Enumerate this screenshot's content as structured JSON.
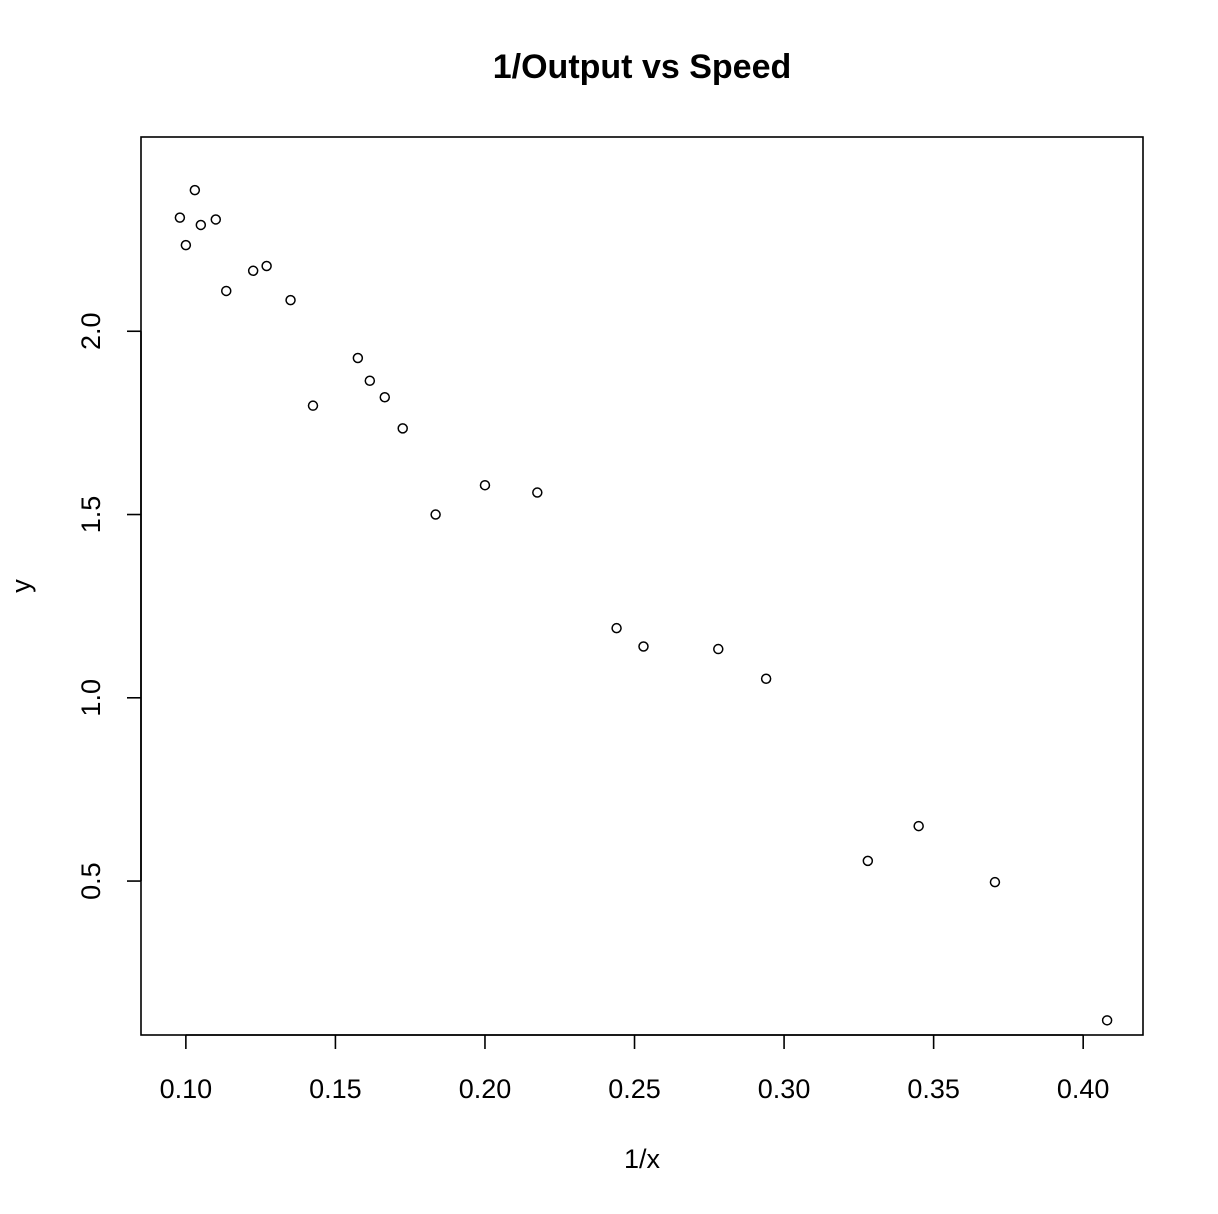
{
  "chart_data": {
    "type": "scatter",
    "title": "1/Output vs Speed",
    "xlabel": "1/x",
    "ylabel": "y",
    "xlim": [
      0.085,
      0.42
    ],
    "ylim": [
      0.08,
      2.53
    ],
    "xticks": [
      0.1,
      0.15,
      0.2,
      0.25,
      0.3,
      0.35,
      0.4
    ],
    "xtick_labels": [
      "0.10",
      "0.15",
      "0.20",
      "0.25",
      "0.30",
      "0.35",
      "0.40"
    ],
    "yticks": [
      0.5,
      1.0,
      1.5,
      2.0
    ],
    "ytick_labels": [
      "0.5",
      "1.0",
      "1.5",
      "2.0"
    ],
    "grid": false,
    "legend": false,
    "marker": "open-circle",
    "point_color": "#000000",
    "points": [
      {
        "x": 0.098,
        "y": 2.31
      },
      {
        "x": 0.1,
        "y": 2.235
      },
      {
        "x": 0.103,
        "y": 2.385
      },
      {
        "x": 0.105,
        "y": 2.29
      },
      {
        "x": 0.11,
        "y": 2.305
      },
      {
        "x": 0.1135,
        "y": 2.11
      },
      {
        "x": 0.1225,
        "y": 2.165
      },
      {
        "x": 0.127,
        "y": 2.178
      },
      {
        "x": 0.135,
        "y": 2.085
      },
      {
        "x": 0.1425,
        "y": 1.797
      },
      {
        "x": 0.1575,
        "y": 1.927
      },
      {
        "x": 0.1615,
        "y": 1.865
      },
      {
        "x": 0.1665,
        "y": 1.82
      },
      {
        "x": 0.1725,
        "y": 1.735
      },
      {
        "x": 0.1835,
        "y": 1.5
      },
      {
        "x": 0.2,
        "y": 1.58
      },
      {
        "x": 0.2175,
        "y": 1.56
      },
      {
        "x": 0.244,
        "y": 1.19
      },
      {
        "x": 0.253,
        "y": 1.14
      },
      {
        "x": 0.278,
        "y": 1.133
      },
      {
        "x": 0.294,
        "y": 1.052
      },
      {
        "x": 0.328,
        "y": 0.555
      },
      {
        "x": 0.345,
        "y": 0.65
      },
      {
        "x": 0.3705,
        "y": 0.497
      },
      {
        "x": 0.408,
        "y": 0.12
      }
    ]
  }
}
